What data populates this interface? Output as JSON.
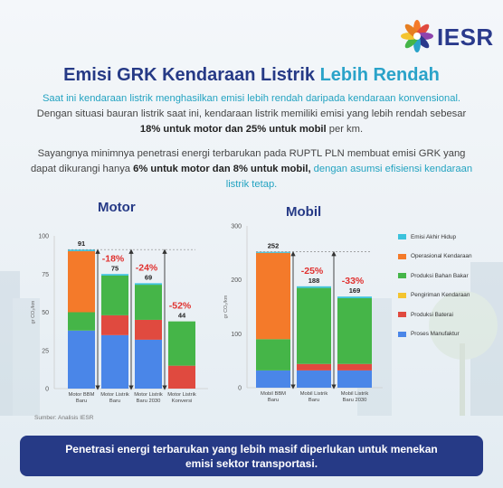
{
  "brand": {
    "name": "IESR"
  },
  "title": {
    "part1": "Emisi GRK Kendaraan Listrik",
    "part2": "Lebih Rendah"
  },
  "paragraph1": {
    "teal": "Saat ini kendaraan listrik menghasilkan emisi lebih rendah daripada kendaraan konvensional.",
    "normal": " Dengan situasi bauran listrik saat ini, kendaraan listrik memiliki emisi yang lebih rendah sebesar ",
    "bold": "18% untuk motor dan 25% untuk mobil",
    "end": " per km."
  },
  "paragraph2": {
    "normal": "Sayangnya minimnya penetrasi energi terbarukan pada RUPTL PLN membuat emisi GRK yang dapat dikurangi hanya ",
    "bold": "6% untuk motor dan 8% untuk mobil,",
    "teal": " dengan asumsi efisiensi kendaraan listrik tetap."
  },
  "colors": {
    "Emisi Akhir Hidup": "#3cc2dc",
    "Operasional Kendaraan": "#f47a2a",
    "Produksi Bahan Bakar": "#45b548",
    "Pengiriman Kendaraan": "#f4c430",
    "Produksi Baterai": "#e04a3f",
    "Proses Manufaktur": "#4a86e8"
  },
  "legend": [
    "Emisi Akhir Hidup",
    "Operasional Kendaraan",
    "Produksi Bahan Bakar",
    "Pengiriman Kendaraan",
    "Produksi Baterai",
    "Proses Manufaktur"
  ],
  "source": "Sumber: Analisis IESR",
  "banner": "Penetrasi energi terbarukan yang lebih masif diperlukan untuk menekan emisi sektor transportasi.",
  "chart_data": [
    {
      "type": "bar",
      "title": "Motor",
      "ylabel": "gr CO₂/km",
      "ylim": [
        0,
        100
      ],
      "yticks": [
        0,
        25,
        50,
        75,
        100
      ],
      "grid": false,
      "categories": [
        "Motor BBM Baru",
        "Motor Listrik Baru",
        "Motor Listrik Baru 2030",
        "Motor Listrik Konversi"
      ],
      "category_lines": [
        [
          "Motor BBM",
          "Baru"
        ],
        [
          "Motor Listrik",
          "Baru"
        ],
        [
          "Motor Listrik",
          "Baru 2030"
        ],
        [
          "Motor Listrik",
          "Konversi"
        ]
      ],
      "series": [
        {
          "name": "Proses Manufaktur",
          "values": [
            38,
            35,
            32,
            0
          ]
        },
        {
          "name": "Produksi Baterai",
          "values": [
            0,
            13,
            13,
            15
          ]
        },
        {
          "name": "Pengiriman Kendaraan",
          "values": [
            0,
            0,
            0,
            0
          ]
        },
        {
          "name": "Produksi Bahan Bakar",
          "values": [
            12,
            26,
            23,
            29
          ]
        },
        {
          "name": "Operasional Kendaraan",
          "values": [
            40,
            0,
            0,
            0
          ]
        },
        {
          "name": "Emisi Akhir Hidup",
          "values": [
            1,
            1,
            1,
            0
          ]
        }
      ],
      "totals": [
        91,
        75,
        69,
        44
      ],
      "reductions": [
        null,
        "-18%",
        "-24%",
        "-52%"
      ]
    },
    {
      "type": "bar",
      "title": "Mobil",
      "ylabel": "gr CO₂/km",
      "ylim": [
        0,
        300
      ],
      "yticks": [
        0,
        100,
        200,
        300
      ],
      "grid": false,
      "categories": [
        "Mobil BBM Baru",
        "Mobil Listrik Baru",
        "Mobil Listrik Baru 2030"
      ],
      "category_lines": [
        [
          "Mobil BBM",
          "Baru"
        ],
        [
          "Mobil Listrik",
          "Baru"
        ],
        [
          "Mobil Listrik",
          "Baru 2030"
        ]
      ],
      "series": [
        {
          "name": "Proses Manufaktur",
          "values": [
            32,
            32,
            32
          ]
        },
        {
          "name": "Produksi Baterai",
          "values": [
            0,
            12,
            12
          ]
        },
        {
          "name": "Pengiriman Kendaraan",
          "values": [
            0,
            0,
            0
          ]
        },
        {
          "name": "Produksi Bahan Bakar",
          "values": [
            58,
            141,
            122
          ]
        },
        {
          "name": "Operasional Kendaraan",
          "values": [
            160,
            0,
            0
          ]
        },
        {
          "name": "Emisi Akhir Hidup",
          "values": [
            2,
            3,
            3
          ]
        }
      ],
      "totals": [
        252,
        188,
        169
      ],
      "reductions": [
        null,
        "-25%",
        "-33%"
      ]
    }
  ]
}
